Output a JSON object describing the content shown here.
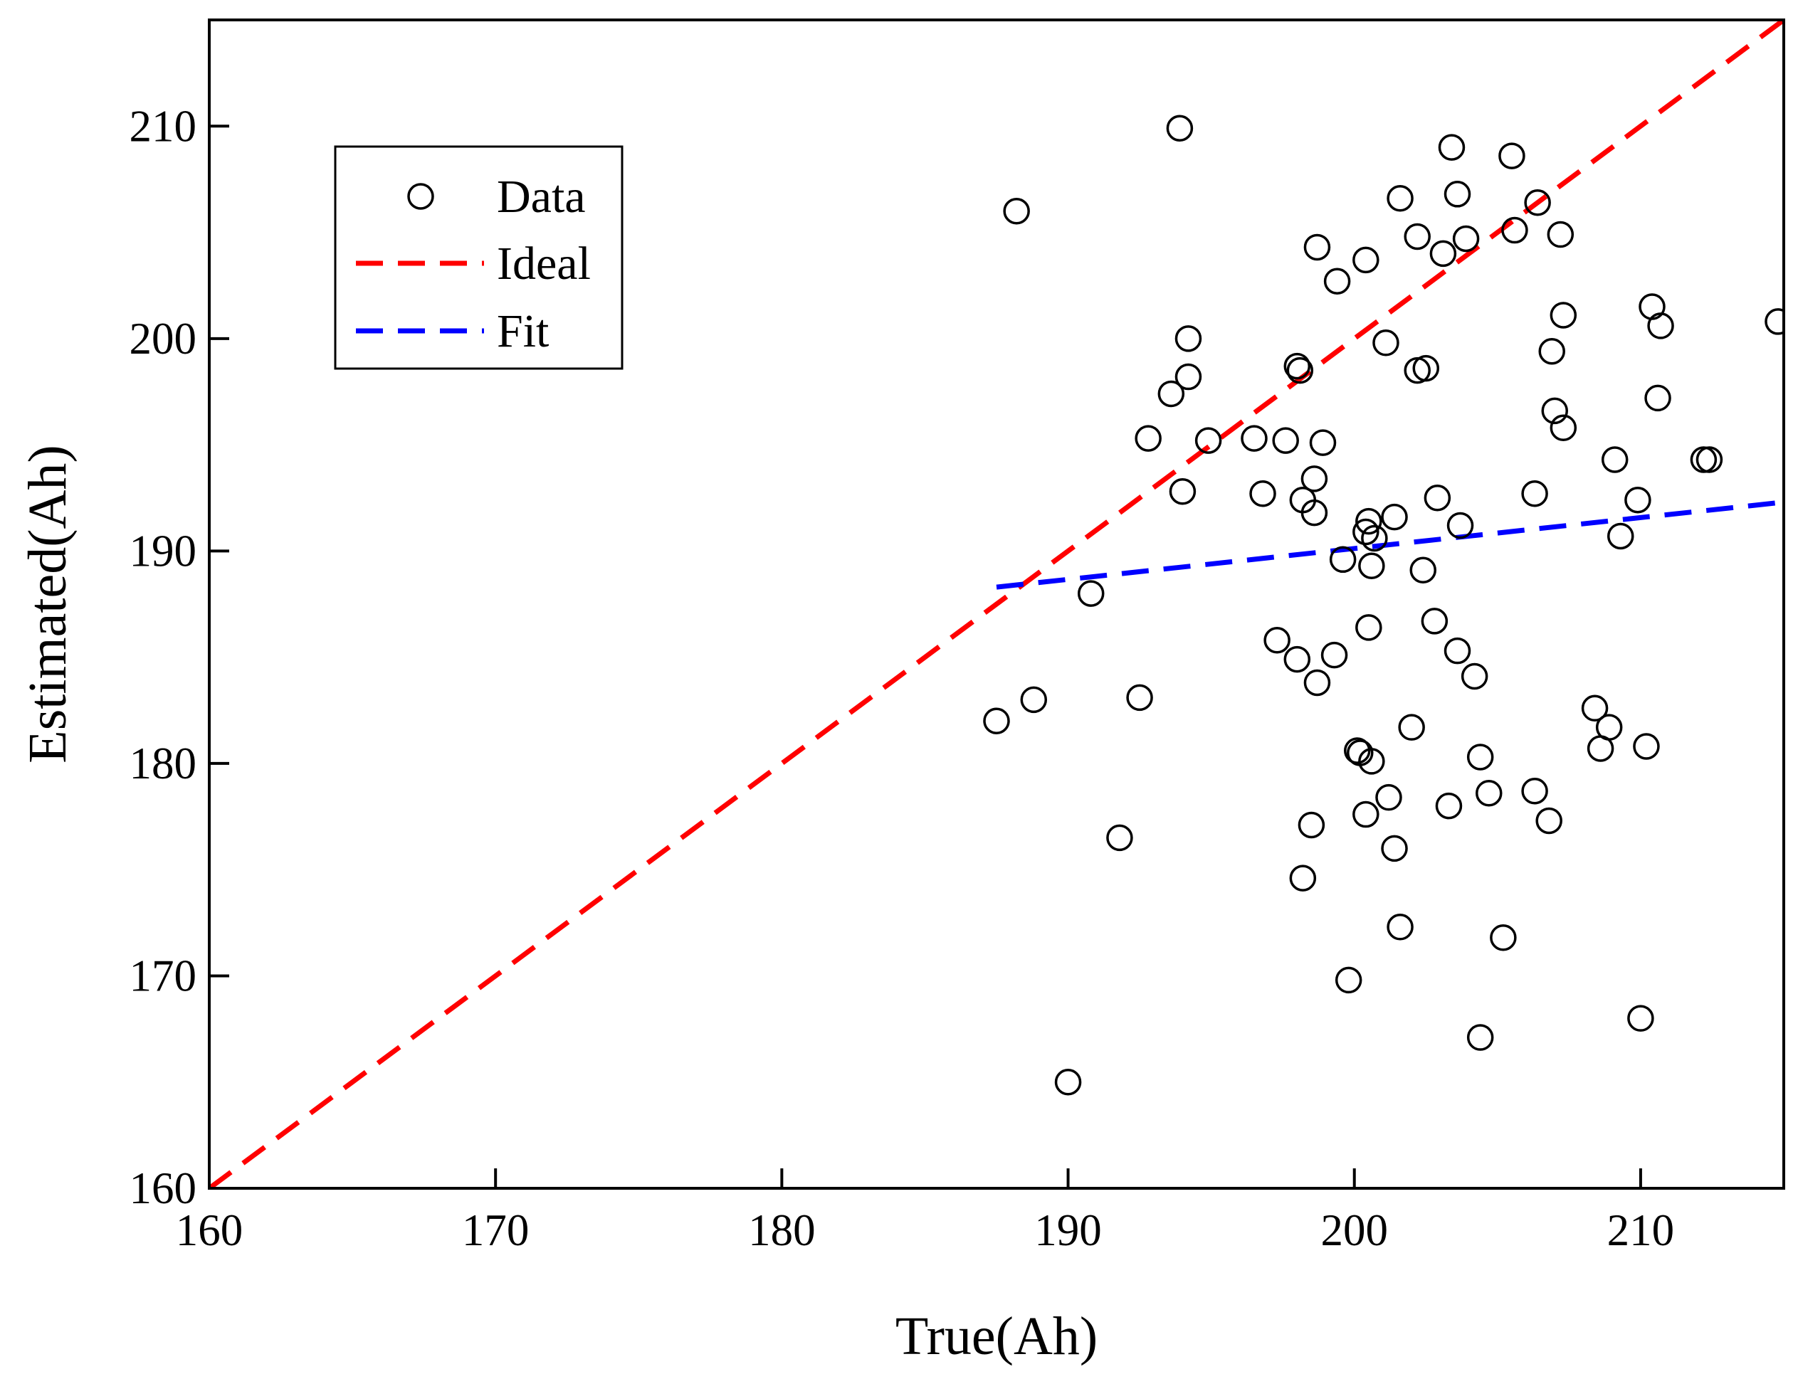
{
  "chart_data": {
    "type": "scatter",
    "title": "",
    "xlabel": "True(Ah)",
    "ylabel": "Estimated(Ah)",
    "xlim": [
      160,
      215
    ],
    "ylim": [
      160,
      215
    ],
    "xticks": [
      "160",
      "170",
      "180",
      "190",
      "200",
      "210"
    ],
    "yticks": [
      "160",
      "170",
      "180",
      "190",
      "200",
      "210"
    ],
    "grid": false,
    "legend_position": "top-left",
    "legend": [
      {
        "label": "Data",
        "style": "marker",
        "color": "#000000"
      },
      {
        "label": "Ideal",
        "style": "dashed",
        "color": "#ff0000"
      },
      {
        "label": "Fit",
        "style": "dashed",
        "color": "#0000ff"
      }
    ],
    "series": [
      {
        "name": "Data",
        "type": "scatter",
        "color": "#000000",
        "points": [
          [
            188.2,
            206.0
          ],
          [
            193.9,
            209.9
          ],
          [
            187.5,
            182.0
          ],
          [
            188.8,
            183.0
          ],
          [
            190.0,
            165.0
          ],
          [
            190.8,
            188.0
          ],
          [
            191.8,
            176.5
          ],
          [
            192.5,
            183.1
          ],
          [
            192.8,
            195.3
          ],
          [
            193.6,
            197.4
          ],
          [
            194.0,
            192.8
          ],
          [
            194.2,
            198.2
          ],
          [
            194.2,
            200.0
          ],
          [
            194.9,
            195.2
          ],
          [
            196.5,
            195.3
          ],
          [
            196.8,
            192.7
          ],
          [
            197.3,
            185.8
          ],
          [
            197.6,
            195.2
          ],
          [
            198.0,
            198.7
          ],
          [
            198.1,
            198.5
          ],
          [
            198.0,
            184.9
          ],
          [
            198.2,
            192.4
          ],
          [
            198.2,
            174.6
          ],
          [
            198.5,
            177.1
          ],
          [
            198.6,
            191.8
          ],
          [
            198.6,
            193.4
          ],
          [
            198.7,
            204.3
          ],
          [
            198.7,
            183.8
          ],
          [
            198.9,
            195.1
          ],
          [
            199.3,
            185.1
          ],
          [
            199.4,
            202.7
          ],
          [
            199.6,
            189.6
          ],
          [
            199.8,
            169.8
          ],
          [
            200.1,
            180.6
          ],
          [
            200.2,
            180.5
          ],
          [
            200.4,
            177.6
          ],
          [
            200.4,
            203.7
          ],
          [
            200.4,
            190.9
          ],
          [
            200.5,
            191.4
          ],
          [
            200.5,
            186.4
          ],
          [
            200.6,
            180.1
          ],
          [
            200.6,
            189.3
          ],
          [
            200.7,
            190.6
          ],
          [
            201.1,
            199.8
          ],
          [
            201.2,
            178.4
          ],
          [
            201.4,
            191.6
          ],
          [
            201.4,
            176.0
          ],
          [
            201.6,
            206.6
          ],
          [
            201.6,
            172.3
          ],
          [
            202.0,
            181.7
          ],
          [
            202.2,
            198.5
          ],
          [
            202.2,
            204.8
          ],
          [
            202.4,
            189.1
          ],
          [
            202.5,
            198.6
          ],
          [
            202.8,
            186.7
          ],
          [
            202.9,
            192.5
          ],
          [
            203.1,
            204.0
          ],
          [
            203.3,
            178.0
          ],
          [
            203.4,
            209.0
          ],
          [
            203.6,
            206.8
          ],
          [
            203.6,
            185.3
          ],
          [
            203.7,
            191.2
          ],
          [
            203.9,
            204.7
          ],
          [
            204.2,
            184.1
          ],
          [
            204.4,
            167.1
          ],
          [
            204.4,
            180.3
          ],
          [
            204.7,
            178.6
          ],
          [
            205.2,
            171.8
          ],
          [
            205.5,
            208.6
          ],
          [
            205.6,
            205.1
          ],
          [
            206.3,
            178.7
          ],
          [
            206.3,
            192.7
          ],
          [
            206.4,
            206.4
          ],
          [
            206.8,
            177.3
          ],
          [
            206.9,
            199.4
          ],
          [
            207.0,
            196.6
          ],
          [
            207.2,
            204.9
          ],
          [
            207.3,
            201.1
          ],
          [
            207.3,
            195.8
          ],
          [
            208.4,
            182.6
          ],
          [
            208.6,
            180.7
          ],
          [
            208.9,
            181.7
          ],
          [
            209.1,
            194.3
          ],
          [
            209.3,
            190.7
          ],
          [
            209.9,
            192.4
          ],
          [
            210.0,
            168.0
          ],
          [
            210.2,
            180.8
          ],
          [
            210.4,
            201.5
          ],
          [
            210.6,
            197.2
          ],
          [
            210.7,
            200.6
          ],
          [
            212.2,
            194.3
          ],
          [
            212.4,
            194.3
          ],
          [
            214.8,
            200.8
          ]
        ]
      },
      {
        "name": "Ideal",
        "type": "line",
        "dashed": true,
        "color": "#ff0000",
        "points": [
          [
            160,
            160
          ],
          [
            215,
            215
          ]
        ]
      },
      {
        "name": "Fit",
        "type": "line",
        "dashed": true,
        "color": "#0000ff",
        "points": [
          [
            187.5,
            188.3
          ],
          [
            215,
            192.3
          ]
        ]
      }
    ]
  }
}
